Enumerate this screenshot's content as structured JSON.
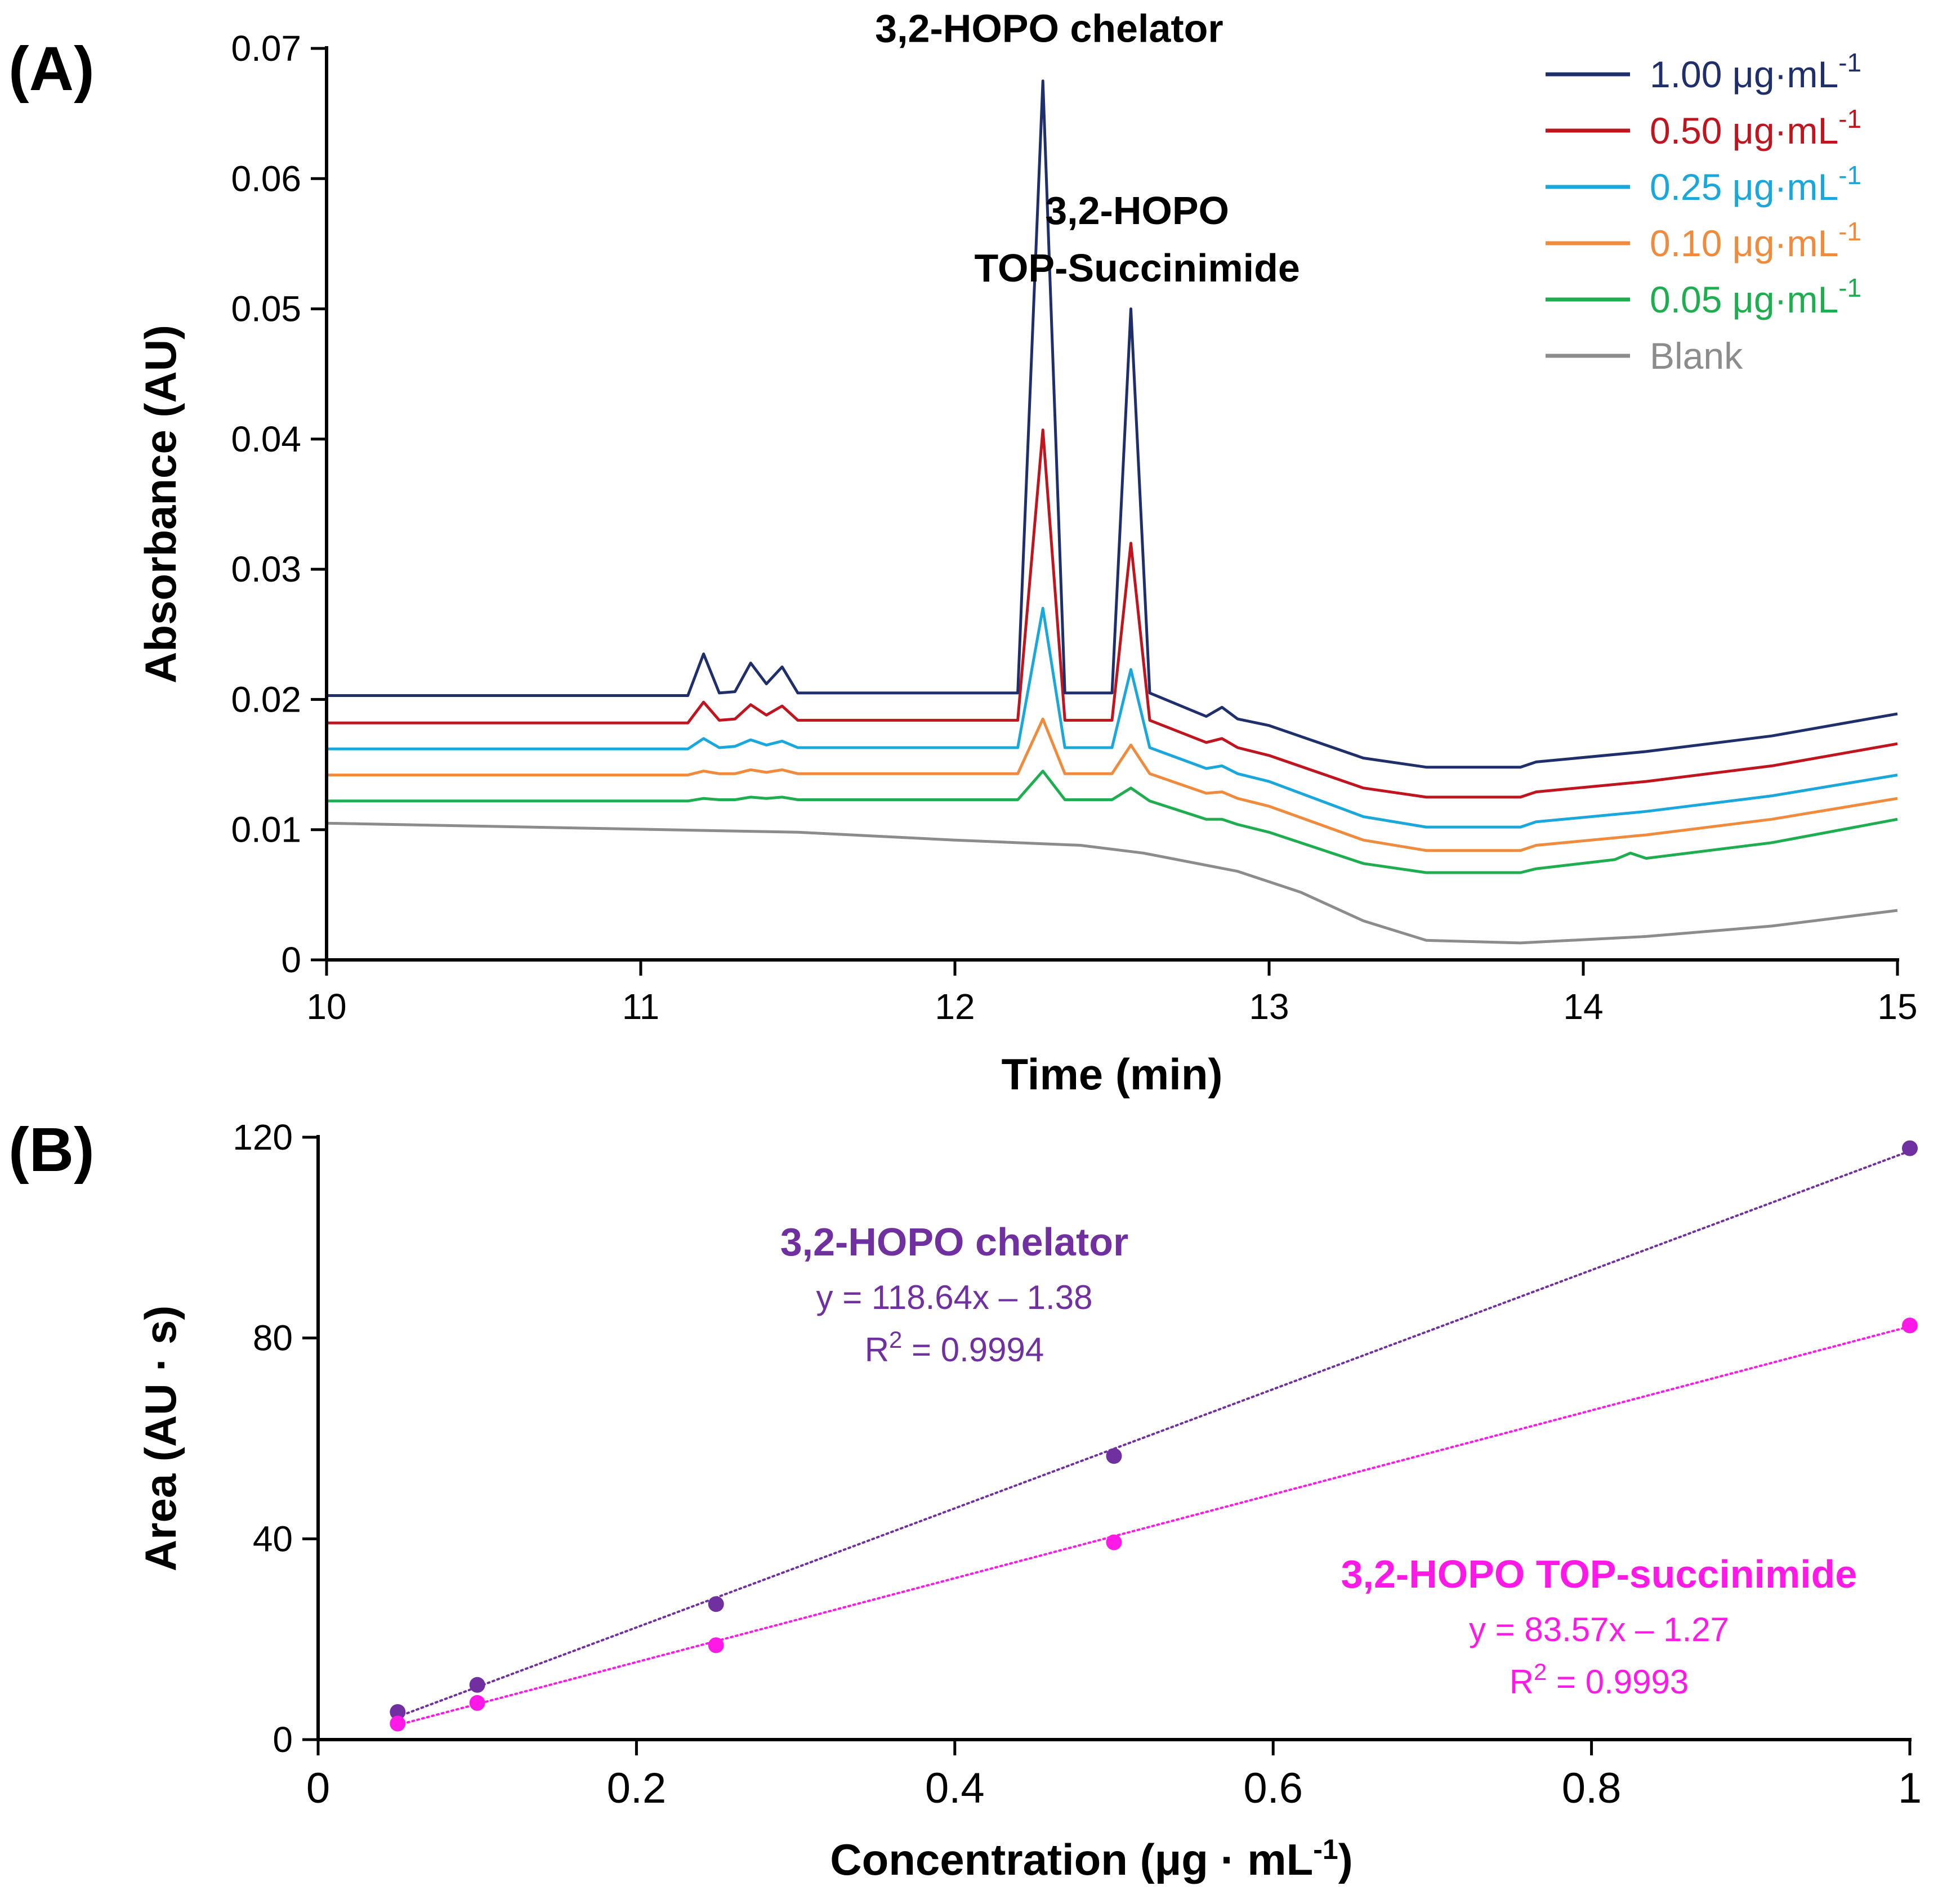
{
  "panel_a_label": "(A)",
  "panel_b_label": "(B)",
  "chart_data": [
    {
      "type": "line",
      "panel": "A",
      "title": "",
      "xlabel": "Time (min)",
      "ylabel": "Absorbance (AU)",
      "xlim": [
        10,
        15
      ],
      "ylim": [
        0,
        0.07
      ],
      "xticks": [
        10,
        11,
        12,
        13,
        14,
        15
      ],
      "ytick_labels": [
        "0",
        "0.01",
        "0.02",
        "0.03",
        "0.04",
        "0.05",
        "0.06",
        "0.07"
      ],
      "yticks": [
        0,
        0.01,
        0.02,
        0.03,
        0.04,
        0.05,
        0.06,
        0.07
      ],
      "legend_position": "top-right",
      "annotations": [
        {
          "text": "3,2-HOPO chelator",
          "x": 12.3,
          "y": 0.0705
        },
        {
          "text": "3,2-HOPO",
          "x": 12.58,
          "y": 0.0565
        },
        {
          "text": "TOP-Succinimide",
          "x": 12.58,
          "y": 0.0521
        }
      ],
      "series": [
        {
          "name": "1.00 μg·mL",
          "sup": "-1",
          "color": "#1f2f6b",
          "x": [
            10,
            11.15,
            11.2,
            11.25,
            11.3,
            11.35,
            11.4,
            11.45,
            11.5,
            12.2,
            12.28,
            12.35,
            12.5,
            12.56,
            12.62,
            12.8,
            12.85,
            12.9,
            13.0,
            13.3,
            13.5,
            13.8,
            13.85,
            14.2,
            14.6,
            15
          ],
          "y": [
            0.0203,
            0.0203,
            0.0235,
            0.0205,
            0.0206,
            0.0228,
            0.0212,
            0.0225,
            0.0205,
            0.0205,
            0.0675,
            0.0205,
            0.0205,
            0.05,
            0.0205,
            0.0187,
            0.0194,
            0.0185,
            0.018,
            0.0155,
            0.0148,
            0.0148,
            0.0152,
            0.016,
            0.0172,
            0.0189
          ]
        },
        {
          "name": "0.50 μg·mL",
          "sup": "-1",
          "color": "#c0141f",
          "x": [
            10,
            11.15,
            11.2,
            11.25,
            11.3,
            11.35,
            11.4,
            11.45,
            11.5,
            12.2,
            12.28,
            12.35,
            12.5,
            12.56,
            12.62,
            12.8,
            12.85,
            12.9,
            13.0,
            13.3,
            13.5,
            13.8,
            13.85,
            14.2,
            14.6,
            15
          ],
          "y": [
            0.0182,
            0.0182,
            0.0198,
            0.0184,
            0.0185,
            0.0196,
            0.0188,
            0.0195,
            0.0184,
            0.0184,
            0.0407,
            0.0184,
            0.0184,
            0.032,
            0.0184,
            0.0167,
            0.017,
            0.0163,
            0.0157,
            0.0132,
            0.0125,
            0.0125,
            0.0129,
            0.0137,
            0.0149,
            0.0166
          ]
        },
        {
          "name": "0.25 μg·mL",
          "sup": "-1",
          "color": "#1aa7dc",
          "x": [
            10,
            11.15,
            11.2,
            11.25,
            11.3,
            11.35,
            11.4,
            11.45,
            11.5,
            12.2,
            12.28,
            12.35,
            12.5,
            12.56,
            12.62,
            12.8,
            12.85,
            12.9,
            13.0,
            13.3,
            13.5,
            13.8,
            13.85,
            14.2,
            14.6,
            15
          ],
          "y": [
            0.0162,
            0.0162,
            0.017,
            0.0163,
            0.0164,
            0.0169,
            0.0165,
            0.0168,
            0.0163,
            0.0163,
            0.027,
            0.0163,
            0.0163,
            0.0223,
            0.0163,
            0.0147,
            0.0149,
            0.0143,
            0.0137,
            0.011,
            0.0102,
            0.0102,
            0.0106,
            0.0114,
            0.0126,
            0.0142
          ]
        },
        {
          "name": "0.10 μg·mL",
          "sup": "-1",
          "color": "#f08a3c",
          "x": [
            10,
            11.15,
            11.2,
            11.25,
            11.3,
            11.35,
            11.4,
            11.45,
            11.5,
            12.2,
            12.28,
            12.35,
            12.5,
            12.56,
            12.62,
            12.8,
            12.85,
            12.9,
            13.0,
            13.3,
            13.5,
            13.8,
            13.85,
            14.2,
            14.6,
            15
          ],
          "y": [
            0.0142,
            0.0142,
            0.0145,
            0.0143,
            0.0143,
            0.0146,
            0.0144,
            0.0146,
            0.0143,
            0.0143,
            0.0185,
            0.0143,
            0.0143,
            0.0165,
            0.0143,
            0.0128,
            0.0129,
            0.0124,
            0.0118,
            0.0092,
            0.0084,
            0.0084,
            0.0088,
            0.0096,
            0.0108,
            0.0124
          ]
        },
        {
          "name": "0.05 μg·mL",
          "sup": "-1",
          "color": "#1fae4f",
          "x": [
            10,
            11.15,
            11.2,
            11.25,
            11.3,
            11.35,
            11.4,
            11.45,
            11.5,
            12.2,
            12.28,
            12.35,
            12.5,
            12.56,
            12.62,
            12.8,
            12.85,
            12.9,
            13.0,
            13.3,
            13.5,
            13.8,
            13.85,
            14.1,
            14.15,
            14.2,
            14.6,
            15
          ],
          "y": [
            0.0122,
            0.0122,
            0.0124,
            0.0123,
            0.0123,
            0.0125,
            0.0124,
            0.0125,
            0.0123,
            0.0123,
            0.0145,
            0.0123,
            0.0123,
            0.0132,
            0.0122,
            0.0108,
            0.0108,
            0.0104,
            0.0098,
            0.0074,
            0.0067,
            0.0067,
            0.007,
            0.0077,
            0.0082,
            0.0078,
            0.009,
            0.0108
          ]
        },
        {
          "name": "Blank",
          "sup": "",
          "color": "#8c8c8c",
          "x": [
            10,
            11.5,
            12.0,
            12.4,
            12.6,
            12.9,
            13.1,
            13.3,
            13.5,
            13.8,
            14.2,
            14.6,
            15
          ],
          "y": [
            0.0105,
            0.0098,
            0.0092,
            0.0088,
            0.0082,
            0.0068,
            0.0052,
            0.003,
            0.0015,
            0.0013,
            0.0018,
            0.0026,
            0.0038
          ]
        }
      ]
    },
    {
      "type": "scatter",
      "panel": "B",
      "title": "",
      "xlabel": "Concentration (μg · mL",
      "xlabel_sup": "-1",
      "xlabel_suffix": ")",
      "ylabel": "Area (AU · s)",
      "xlim": [
        0,
        1
      ],
      "ylim": [
        0,
        120
      ],
      "xticks": [
        0,
        0.2,
        0.4,
        0.6,
        0.8,
        1
      ],
      "yticks": [
        0,
        40,
        80,
        120
      ],
      "series": [
        {
          "name": "3,2-HOPO chelator",
          "color": "#7030a0",
          "x": [
            0.05,
            0.1,
            0.25,
            0.5,
            1.0
          ],
          "y": [
            5.5,
            10.9,
            27.0,
            56.5,
            117.8
          ],
          "fit": {
            "slope": 118.64,
            "intercept": -1.38
          },
          "equation": "y = 118.64x – 1.38",
          "r2_prefix": "R",
          "r2_sup": "2",
          "r2_suffix": " = 0.9994"
        },
        {
          "name": "3,2-HOPO TOP-succinimide",
          "color": "#ff19e6",
          "x": [
            0.05,
            0.1,
            0.25,
            0.5,
            1.0
          ],
          "y": [
            3.2,
            7.3,
            18.8,
            39.3,
            82.5
          ],
          "fit": {
            "slope": 83.57,
            "intercept": -1.27
          },
          "equation": "y = 83.57x – 1.27",
          "r2_prefix": "R",
          "r2_sup": "2",
          "r2_suffix": " = 0.9993"
        }
      ]
    }
  ]
}
